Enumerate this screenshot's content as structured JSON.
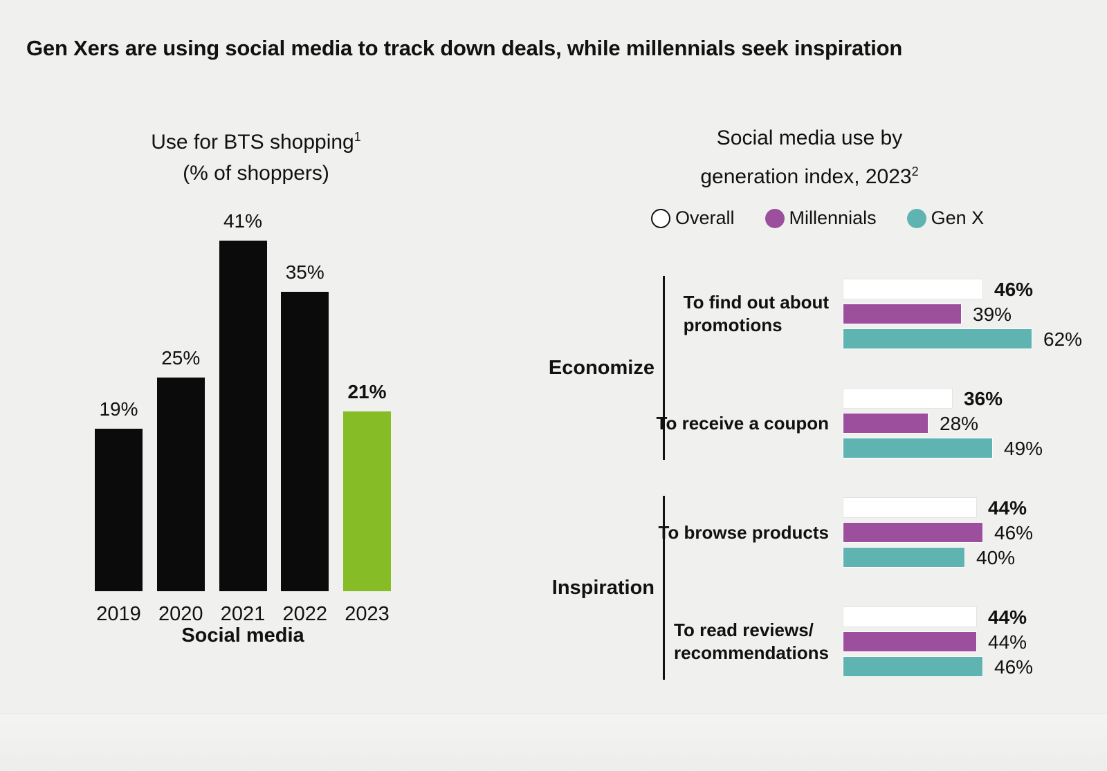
{
  "headline": "Gen Xers are using social media to track down deals, while millennials seek inspiration",
  "colors": {
    "background": "#f0f0ef",
    "bar_black": "#0b0b0b",
    "highlight_green": "#86bc25",
    "millennials_purple": "#9c4f9c",
    "genx_teal": "#5fb4b1",
    "overall_white": "#ffffff",
    "text": "#111111"
  },
  "chart_data": [
    {
      "type": "bar",
      "title": "Use for BTS shopping",
      "title_superscript": "1",
      "subtitle": "(% of shoppers)",
      "categories": [
        "2019",
        "2020",
        "2021",
        "2022",
        "2023"
      ],
      "values": [
        19,
        25,
        41,
        35,
        21
      ],
      "value_labels": [
        "19%",
        "25%",
        "41%",
        "35%",
        "21%"
      ],
      "unit": "%",
      "xlabel": "Social media",
      "ylim": [
        0,
        45
      ],
      "grid": false,
      "highlight_index": 4,
      "bar_color": "#0b0b0b",
      "highlight_color": "#86bc25"
    },
    {
      "type": "bar",
      "orientation": "horizontal-grouped",
      "title": "Social media use by generation index, 2023",
      "title_line1": "Social media use by",
      "title_line2": "generation index, 2023",
      "title_superscript": "2",
      "legend_position": "top",
      "legend": [
        {
          "name": "Overall",
          "color": "#ffffff"
        },
        {
          "name": "Millennials",
          "color": "#9c4f9c"
        },
        {
          "name": "Gen X",
          "color": "#5fb4b1"
        }
      ],
      "unit": "%",
      "xlim": [
        0,
        70
      ],
      "grid": false,
      "groups": [
        {
          "name": "Economize",
          "rows": [
            {
              "label": "To find out about promotions",
              "label_lines": [
                "To find out about",
                "promotions"
              ],
              "values": [
                46,
                39,
                62
              ],
              "value_labels": [
                "46%",
                "39%",
                "62%"
              ]
            },
            {
              "label": "To receive a coupon",
              "label_lines": [
                "To receive a coupon"
              ],
              "values": [
                36,
                28,
                49
              ],
              "value_labels": [
                "36%",
                "28%",
                "49%"
              ]
            }
          ]
        },
        {
          "name": "Inspiration",
          "rows": [
            {
              "label": "To browse products",
              "label_lines": [
                "To browse products"
              ],
              "values": [
                44,
                46,
                40
              ],
              "value_labels": [
                "44%",
                "46%",
                "40%"
              ]
            },
            {
              "label": "To read reviews/recommendations",
              "label_lines": [
                "To read reviews/",
                "recommendations"
              ],
              "values": [
                44,
                44,
                46
              ],
              "value_labels": [
                "44%",
                "44%",
                "46%"
              ]
            }
          ]
        }
      ]
    }
  ]
}
